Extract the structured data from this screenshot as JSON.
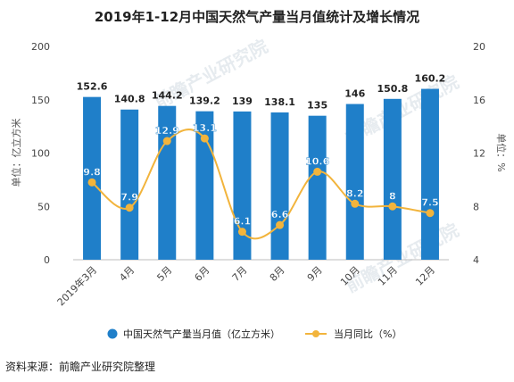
{
  "chart_data": {
    "type": "bar",
    "title": "2019年1-12月中国天然气产量当月值统计及增长情况",
    "categories": [
      "2019年3月",
      "4月",
      "5月",
      "6月",
      "7月",
      "8月",
      "9月",
      "10月",
      "11月",
      "12月"
    ],
    "series": [
      {
        "name": "中国天然气产量当月值（亿立方米）",
        "type": "bar",
        "axis": "left",
        "color": "#1f7fc9",
        "values": [
          152.6,
          140.8,
          144.2,
          139.2,
          139,
          138.1,
          135,
          146,
          150.8,
          160.2
        ],
        "labels": [
          "152.6",
          "140.8",
          "144.2",
          "139.2",
          "139",
          "138.1",
          "135",
          "146",
          "150.8",
          "160.2"
        ]
      },
      {
        "name": "当月同比（%）",
        "type": "line",
        "axis": "right",
        "color": "#f2b43c",
        "values": [
          9.8,
          7.9,
          12.9,
          13.1,
          6.1,
          6.6,
          10.6,
          8.2,
          8,
          7.5
        ],
        "labels": [
          "9.8",
          "7.9",
          "12.9",
          "13.1",
          "6.1",
          "6.6",
          "10.6",
          "8.2",
          "8",
          "7.5"
        ]
      }
    ],
    "ylabel_left": "单位：亿立方米",
    "ylabel_right": "单位：%",
    "ylim_left": [
      0,
      200
    ],
    "yticks_left": [
      "0",
      "50",
      "100",
      "150",
      "200"
    ],
    "ylim_right": [
      4,
      20
    ],
    "yticks_right": [
      "4",
      "8",
      "12",
      "16",
      "20"
    ],
    "grid": false,
    "legend_position": "bottom"
  },
  "source_text": "资料来源：前瞻产业研究院整理",
  "watermark_text": "前瞻产业研究院"
}
